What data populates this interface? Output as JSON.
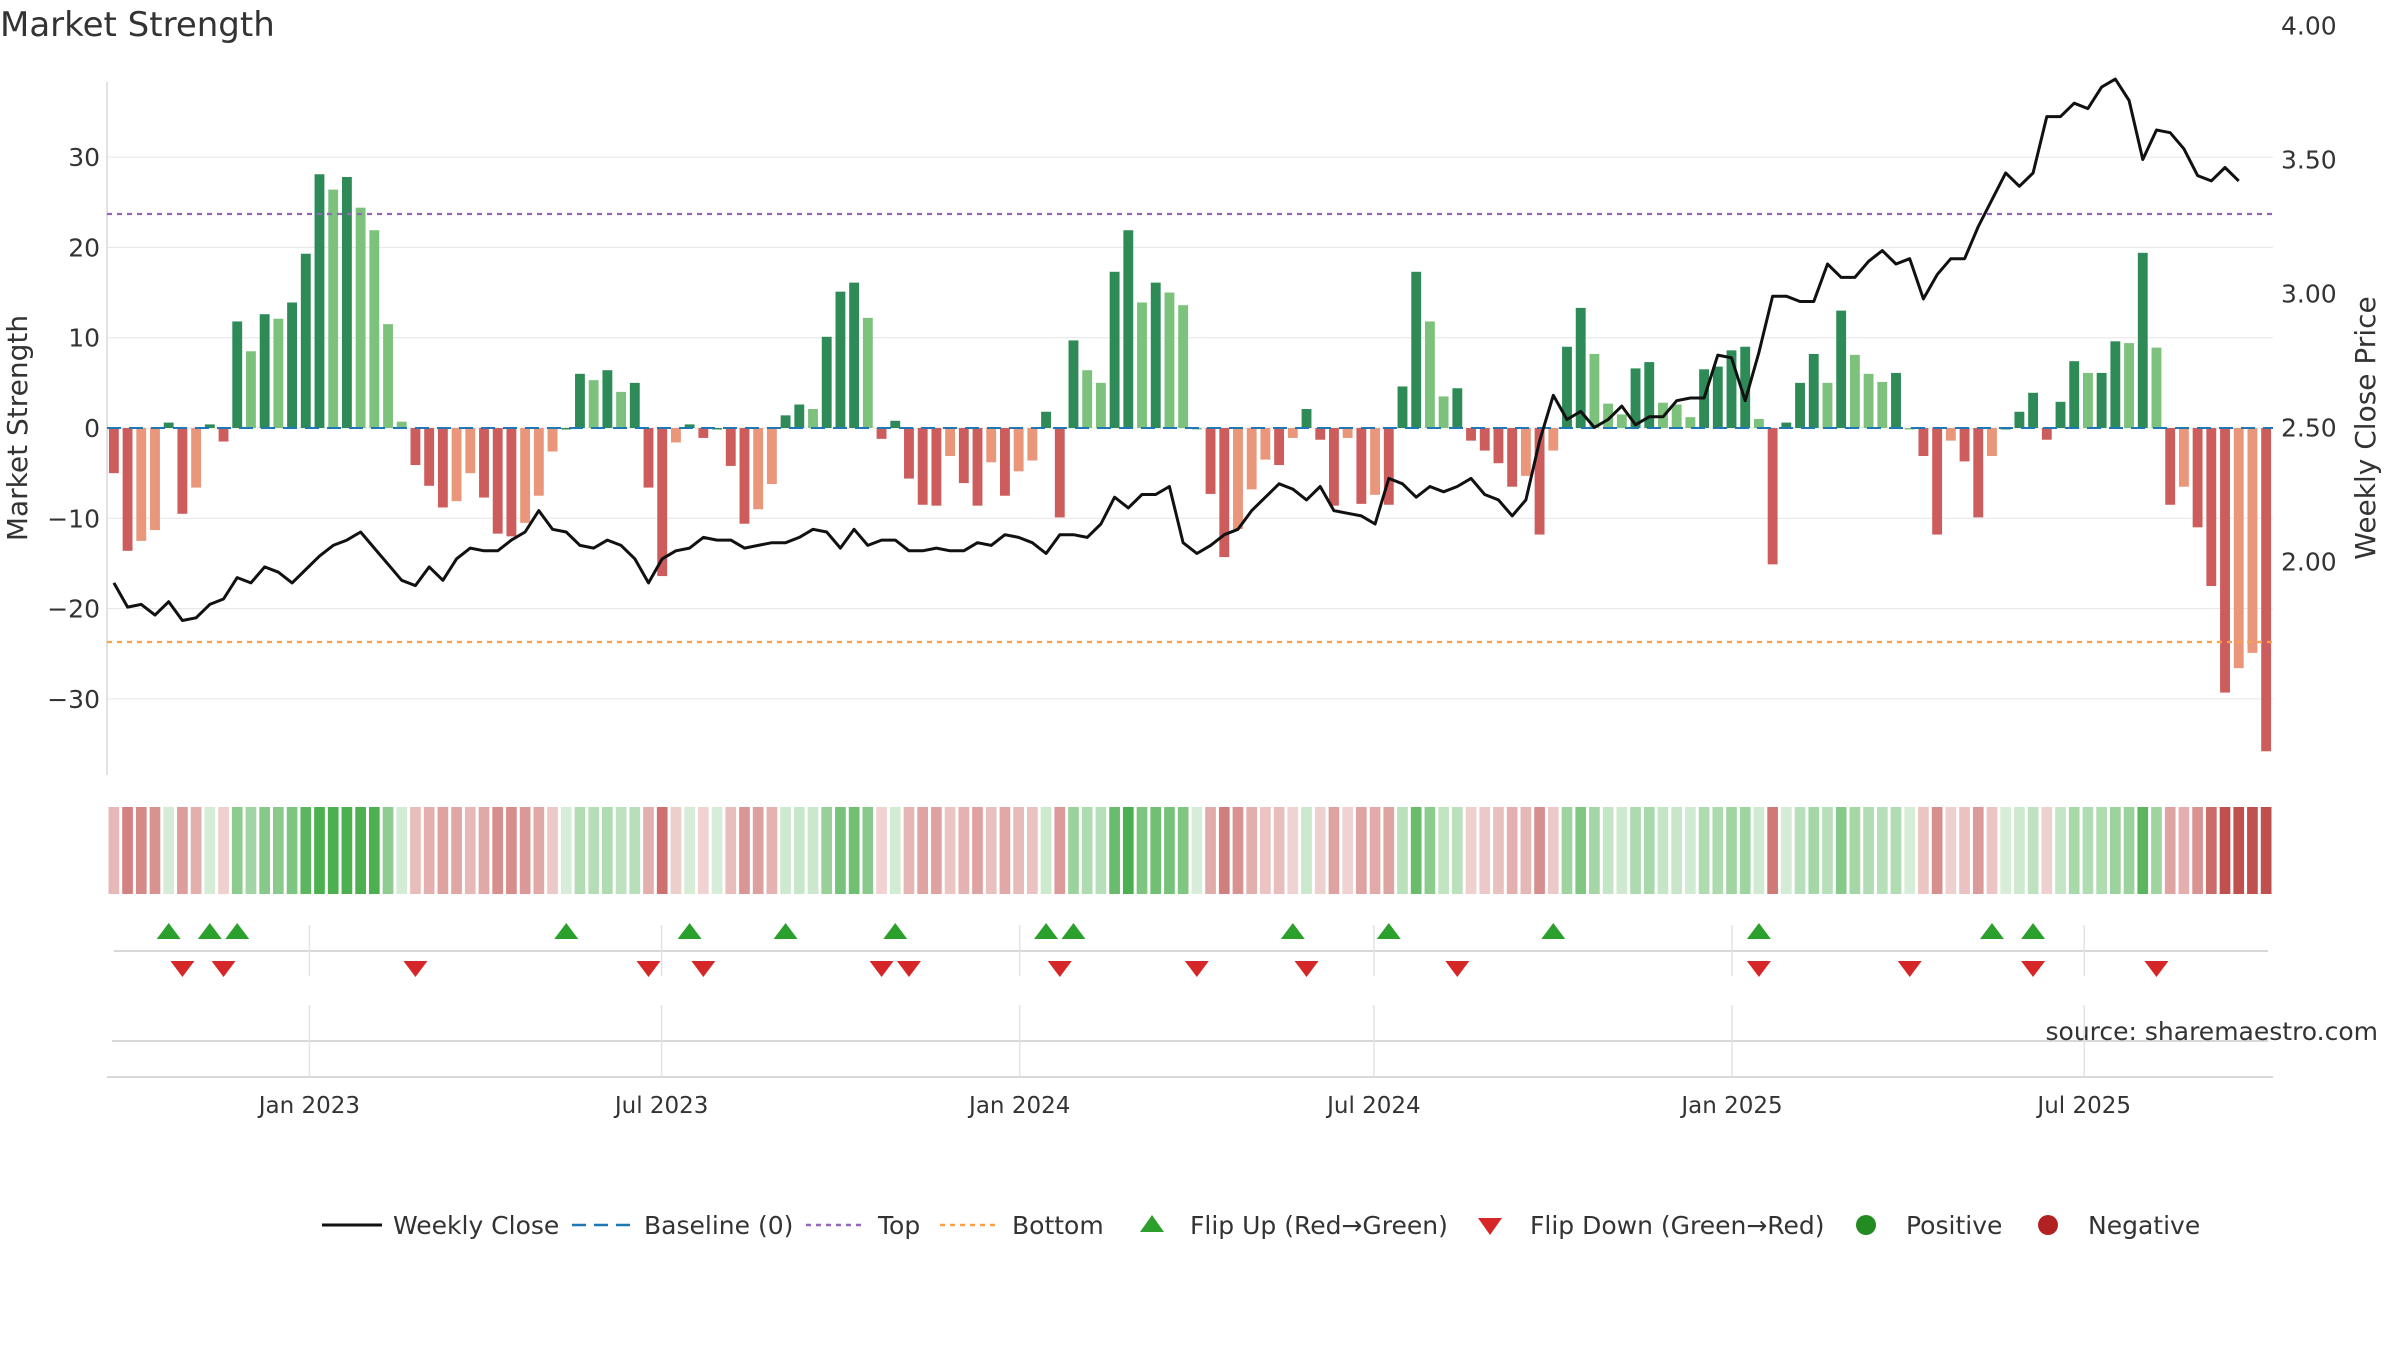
{
  "chart_data": {
    "type": "bar",
    "title": "Market Strength",
    "ylabel": "Market Strength",
    "y2label": "Weekly Close Price",
    "source": "source: sharemaestro.com",
    "ylim": [
      -38.5,
      38.5
    ],
    "y2lim": [
      1.58,
      4.08
    ],
    "yticks": [
      30,
      20,
      10,
      0,
      -10,
      -20,
      -30
    ],
    "yticklabels": [
      "30",
      "20",
      "10",
      "0",
      "−10",
      "−20",
      "−30"
    ],
    "y2ticks": [
      4.0,
      3.5,
      3.0,
      2.5,
      2.0
    ],
    "y2ticklabels": [
      "4.00",
      "3.50",
      "3.00",
      "2.50",
      "2.00"
    ],
    "top_line": 23.7,
    "bottom_line": -23.7,
    "start_date": "2022-09-19",
    "end_date": "2025-10-06",
    "xticks": [
      {
        "date": "2023-01-01",
        "label": "Jan 2023"
      },
      {
        "date": "2023-07-01",
        "label": "Jul 2023"
      },
      {
        "date": "2024-01-01",
        "label": "Jan 2024"
      },
      {
        "date": "2024-07-01",
        "label": "Jul 2024"
      },
      {
        "date": "2025-01-01",
        "label": "Jan 2025"
      },
      {
        "date": "2025-07-01",
        "label": "Jul 2025"
      }
    ],
    "strength": [
      -5,
      -13.6,
      -12.5,
      -11.3,
      0.6,
      -9.5,
      -6.6,
      0.4,
      -1.5,
      11.8,
      8.5,
      12.6,
      12.1,
      13.9,
      19.3,
      28.1,
      26.4,
      27.8,
      24.4,
      21.9,
      11.5,
      0.7,
      -4.1,
      -6.4,
      -8.8,
      -8.1,
      -5,
      -7.7,
      -11.7,
      -12,
      -10.5,
      -7.5,
      -2.6,
      0,
      6,
      5.3,
      6.4,
      4,
      5,
      -6.6,
      -16.4,
      -1.6,
      0.4,
      -1.1,
      0,
      -4.2,
      -10.6,
      -9,
      -6.2,
      1.4,
      2.6,
      2.1,
      10.1,
      15.1,
      16.1,
      12.2,
      -1.2,
      0.8,
      -5.6,
      -8.5,
      -8.6,
      -3.1,
      -6.1,
      -8.6,
      -3.8,
      -7.5,
      -4.8,
      -3.6,
      1.8,
      -9.9,
      9.7,
      6.4,
      5,
      17.3,
      21.9,
      13.9,
      16.1,
      15,
      13.6,
      0,
      -7.3,
      -14.3,
      -11.2,
      -6.8,
      -3.5,
      -4.1,
      -1.1,
      2.1,
      -1.3,
      -8.6,
      -1.1,
      -8.4,
      -7.4,
      -8.5,
      4.6,
      17.3,
      11.8,
      3.5,
      4.4,
      -1.4,
      -2.5,
      -3.9,
      -6.5,
      -5.3,
      -11.8,
      -2.5,
      9,
      13.3,
      8.2,
      2.7,
      1.5,
      6.6,
      7.3,
      2.8,
      2.6,
      1.2,
      6.5,
      6.8,
      8.6,
      9,
      1,
      -15.1,
      0.6,
      5,
      8.2,
      5,
      13,
      8.1,
      6,
      5.1,
      6.1,
      0,
      -3.1,
      -11.8,
      -1.4,
      -3.7,
      -9.9,
      -3.1,
      0,
      1.8,
      3.9,
      -1.3,
      2.9,
      7.4,
      6.1,
      6.1,
      9.6,
      9.4,
      19.4,
      8.9,
      -8.5,
      -6.5,
      -11,
      -17.5,
      -29.3,
      -26.6,
      -24.9,
      -35.8
    ],
    "close": [
      1.92,
      1.83,
      1.84,
      1.8,
      1.85,
      1.78,
      1.79,
      1.84,
      1.86,
      1.94,
      1.92,
      1.98,
      1.96,
      1.92,
      1.97,
      2.02,
      2.06,
      2.08,
      2.11,
      2.05,
      1.99,
      1.93,
      1.91,
      1.98,
      1.93,
      2.01,
      2.05,
      2.04,
      2.04,
      2.08,
      2.11,
      2.19,
      2.12,
      2.11,
      2.06,
      2.05,
      2.08,
      2.06,
      2.01,
      1.92,
      2.01,
      2.04,
      2.05,
      2.09,
      2.08,
      2.08,
      2.05,
      2.06,
      2.07,
      2.07,
      2.09,
      2.12,
      2.11,
      2.05,
      2.12,
      2.06,
      2.08,
      2.08,
      2.04,
      2.04,
      2.05,
      2.04,
      2.04,
      2.07,
      2.06,
      2.1,
      2.09,
      2.07,
      2.03,
      2.1,
      2.1,
      2.09,
      2.14,
      2.24,
      2.2,
      2.25,
      2.25,
      2.28,
      2.07,
      2.03,
      2.06,
      2.1,
      2.12,
      2.19,
      2.24,
      2.29,
      2.27,
      2.23,
      2.28,
      2.19,
      2.18,
      2.17,
      2.14,
      2.31,
      2.29,
      2.24,
      2.28,
      2.26,
      2.28,
      2.31,
      2.25,
      2.23,
      2.17,
      2.23,
      2.45,
      2.62,
      2.53,
      2.56,
      2.5,
      2.53,
      2.58,
      2.51,
      2.54,
      2.54,
      2.6,
      2.61,
      2.61,
      2.77,
      2.76,
      2.6,
      2.78,
      2.99,
      2.99,
      2.97,
      2.97,
      3.11,
      3.06,
      3.06,
      3.12,
      3.16,
      3.11,
      3.13,
      2.98,
      3.07,
      3.13,
      3.13,
      3.25,
      3.35,
      3.45,
      3.4,
      3.45,
      3.66,
      3.66,
      3.71,
      3.69,
      3.77,
      3.8,
      3.72,
      3.5,
      3.61,
      3.6,
      3.54,
      3.44,
      3.42,
      3.47,
      3.42
    ],
    "flip_up_weeks": [
      4,
      7,
      9,
      33,
      42,
      49,
      57,
      68,
      70,
      86,
      93,
      105,
      120,
      137,
      140
    ],
    "flip_down_weeks": [
      5,
      8,
      22,
      39,
      43,
      56,
      58,
      69,
      79,
      87,
      98,
      120,
      131,
      140,
      149
    ],
    "legend": [
      "Weekly Close",
      "Baseline (0)",
      "Top",
      "Bottom",
      "Flip Up (Red→Green)",
      "Flip Down (Green→Red)",
      "Positive",
      "Negative"
    ],
    "colors": {
      "pos_strong": "#2e8b57",
      "pos_weak": "#7cc27c",
      "neg_strong": "#cd5c5c",
      "neg_weak": "#e9967a",
      "close_line": "#111111",
      "baseline": "#1f77b4",
      "top": "#9467bd",
      "bottom": "#ff9f4a",
      "flip_up": "#2ca02c",
      "flip_down": "#d62728",
      "positive": "#228b22",
      "negative": "#b22222"
    }
  }
}
